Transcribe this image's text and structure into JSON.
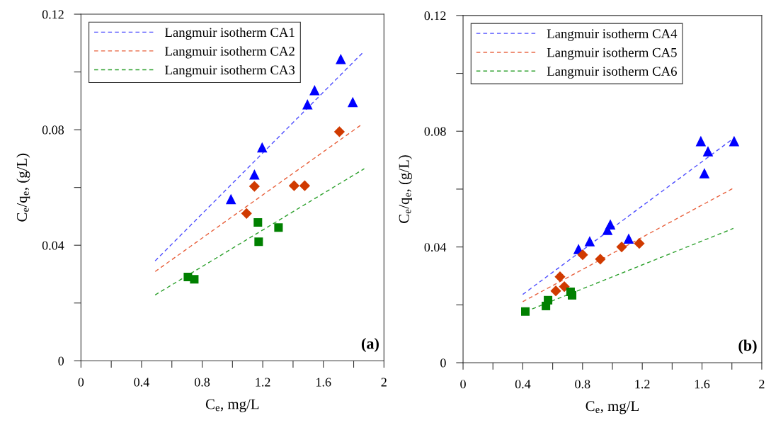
{
  "chart_data": [
    {
      "type": "scatter",
      "xlabel": "C$_{e}$, mg/L",
      "ylabel": "C$_{e}$/q$_{e}$, (g/L)",
      "annotations": [
        "(a)"
      ],
      "xlim": [
        0,
        2
      ],
      "ylim": [
        0,
        0.12
      ],
      "xticks": [
        0,
        {
          "value": 0.2,
          "label": null
        },
        0.4,
        {
          "value": 0.6,
          "label": null
        },
        0.8,
        {
          "value": 1.0,
          "label": null
        },
        1.2,
        {
          "value": 1.4,
          "label": null
        },
        1.6,
        {
          "value": 1.8,
          "label": null
        },
        2
      ],
      "yticks": [
        0,
        {
          "value": 0.02,
          "label": null
        },
        0.04,
        {
          "value": 0.06,
          "label": null
        },
        0.08,
        {
          "value": 0.1,
          "label": null
        },
        0.12
      ],
      "grid": false,
      "legend": "top left",
      "series": [
        {
          "type": "line",
          "name": "Langmuir isotherm CA1",
          "color": "#4d4dff",
          "line_style": "dashed",
          "marker": "none",
          "x": [
            0.49,
            1.87
          ],
          "values": [
            0.0346,
            0.1072
          ]
        },
        {
          "type": "line",
          "name": "Langmuir isotherm CA2",
          "color": "#e8603c",
          "line_style": "dashed",
          "marker": "none",
          "x": [
            0.49,
            1.85
          ],
          "values": [
            0.0309,
            0.0817
          ]
        },
        {
          "type": "line",
          "name": "Langmuir isotherm CA3",
          "color": "#2ca02c",
          "line_style": "dashed",
          "marker": "none",
          "x": [
            0.49,
            1.87
          ],
          "values": [
            0.0228,
            0.0665
          ]
        },
        {
          "color": "#0000ff",
          "marker": "triangle",
          "x": [
            0.99,
            1.145,
            1.196,
            1.495,
            1.542,
            1.715,
            1.794
          ],
          "values": [
            0.056,
            0.0645,
            0.0739,
            0.0888,
            0.0937,
            0.1045,
            0.0896
          ]
        },
        {
          "color": "#d03a00",
          "marker": "diamond",
          "x": [
            1.093,
            1.145,
            1.407,
            1.477,
            1.706
          ],
          "values": [
            0.051,
            0.0604,
            0.0606,
            0.0606,
            0.0793
          ]
        },
        {
          "color": "#008000",
          "marker": "square",
          "x": [
            0.706,
            0.748,
            1.168,
            1.173,
            1.304
          ],
          "values": [
            0.029,
            0.0282,
            0.0479,
            0.0412,
            0.0461
          ]
        }
      ]
    },
    {
      "type": "scatter",
      "xlabel": "C$_{e}$, mg/L",
      "ylabel": "C$_{e}$/q$_{e}$, (g/L)",
      "annotations": [
        "(b)"
      ],
      "xlim": [
        0,
        2
      ],
      "ylim": [
        0,
        0.12
      ],
      "xticks": [
        0,
        {
          "value": 0.2,
          "label": null
        },
        0.4,
        {
          "value": 0.6,
          "label": null
        },
        0.8,
        {
          "value": 1.0,
          "label": null
        },
        1.2,
        {
          "value": 1.4,
          "label": null
        },
        1.6,
        {
          "value": 1.8,
          "label": null
        },
        2
      ],
      "yticks": [
        0,
        {
          "value": 0.02,
          "label": null
        },
        0.04,
        {
          "value": 0.06,
          "label": null
        },
        0.08,
        {
          "value": 0.1,
          "label": null
        },
        0.12
      ],
      "grid": false,
      "legend": "top left",
      "series": [
        {
          "type": "line",
          "name": "Langmuir isotherm CA4",
          "color": "#4d4dff",
          "line_style": "dashed",
          "marker": "none",
          "x": [
            0.4,
            1.81
          ],
          "values": [
            0.0236,
            0.0775
          ]
        },
        {
          "type": "line",
          "name": "Langmuir isotherm CA5",
          "color": "#e8603c",
          "line_style": "dashed",
          "marker": "none",
          "x": [
            0.4,
            1.82
          ],
          "values": [
            0.0211,
            0.0606
          ]
        },
        {
          "type": "line",
          "name": "Langmuir isotherm CA6",
          "color": "#2ca02c",
          "line_style": "dashed",
          "marker": "none",
          "x": [
            0.42,
            1.81
          ],
          "values": [
            0.0177,
            0.0464
          ]
        },
        {
          "color": "#0000ff",
          "marker": "triangle",
          "x": [
            0.773,
            0.848,
            0.967,
            0.986,
            1.109,
            1.592,
            1.616,
            1.64,
            1.815
          ],
          "values": [
            0.0393,
            0.042,
            0.0459,
            0.0478,
            0.0429,
            0.0766,
            0.0655,
            0.0731,
            0.0766
          ]
        },
        {
          "color": "#d03a00",
          "marker": "diamond",
          "x": [
            0.621,
            0.649,
            0.678,
            0.801,
            0.919,
            1.062,
            1.18
          ],
          "values": [
            0.0248,
            0.0297,
            0.0263,
            0.0373,
            0.0358,
            0.04,
            0.0412
          ]
        },
        {
          "color": "#008000",
          "marker": "square",
          "x": [
            0.417,
            0.555,
            0.569,
            0.72,
            0.73
          ],
          "values": [
            0.0177,
            0.0196,
            0.0216,
            0.0245,
            0.0233
          ]
        }
      ]
    }
  ]
}
